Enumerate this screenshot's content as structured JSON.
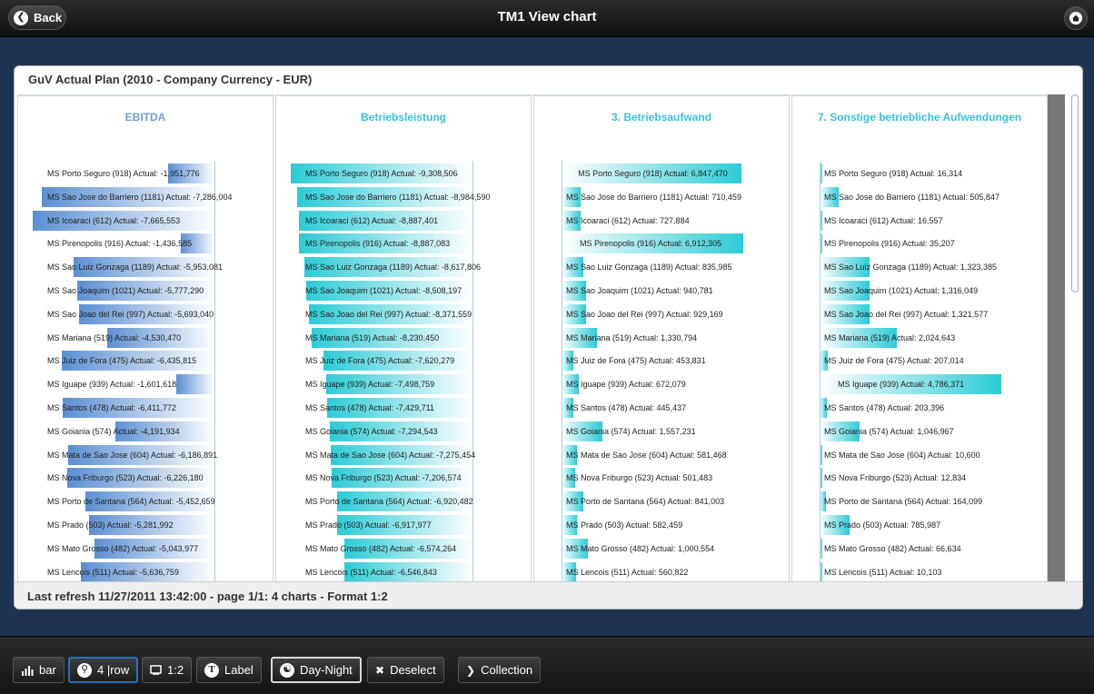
{
  "header": {
    "title": "TM1 View chart",
    "back_label": "Back"
  },
  "panel": {
    "title": "GuV Actual Plan (2010 - Company Currency - EUR)",
    "footer": "Last refresh 11/27/2011 13:42:00 - page 1/1: 4 charts - Format 1:2"
  },
  "chart_data": [
    {
      "type": "bar",
      "title": "EBITDA",
      "categories": [
        "MS Porto Seguro (918)",
        "MS Sao Jose do Barriero (1181)",
        "MS Icoaraci (612)",
        "MS Pirenopolis (916)",
        "MS Sao Luiz Gonzaga (1189)",
        "MS Sao Joaquim (1021)",
        "MS Sao Joao del Rei (997)",
        "MS Mariana (519)",
        "MS Juiz de Fora (475)",
        "MS Iguape (939)",
        "MS Santos (478)",
        "MS Goiania (574)",
        "MS Mata de Sao Jose (604)",
        "MS Nova Friburgo (523)",
        "MS Porto de Santana (564)",
        "MS Prado (503)",
        "MS Mato Grosso (482)",
        "MS Lencois (511)"
      ],
      "values": [
        -1951776,
        -7286004,
        -7665553,
        -1436585,
        -5953081,
        -5777290,
        -5693040,
        -4530470,
        -6435815,
        -1601618,
        -6411772,
        -4191934,
        -6186891,
        -6226180,
        -5452659,
        -5281992,
        -5043977,
        -5636759
      ],
      "labels": [
        "MS Porto Seguro (918) Actual: -1,951,776",
        "MS Sao Jose do Barriero (1181) Actual: -7,286,004",
        "MS Icoaraci (612) Actual: -7,665,553",
        "MS Pirenopolis (916) Actual: -1,436,585",
        "MS Sao Luiz Gonzaga (1189) Actual: -5,953,081",
        "MS Sao Joaquim (1021) Actual: -5,777,290",
        "MS Sao Joao del Rei (997) Actual: -5,693,040",
        "MS Mariana (519) Actual: -4,530,470",
        "MS Juiz de Fora (475) Actual: -6,435,815",
        "MS Iguape (939) Actual: -1,601,618",
        "MS Santos (478) Actual: -6,411,772",
        "MS Goiania (574) Actual: -4,191,934",
        "MS Mata de Sao Jose (604) Actual: -6,186,891",
        "MS Nova Friburgo (523) Actual: -6,226,180",
        "MS Porto de Santana (564) Actual: -5,452,659",
        "MS Prado (503) Actual: -5,281,992",
        "MS Mato Grosso (482) Actual: -5,043,977",
        "MS Lencois (511) Actual: -5,636,759"
      ],
      "color": "#5b8fd2"
    },
    {
      "type": "bar",
      "title": "Betriebsleistung",
      "categories": [
        "MS Porto Seguro (918)",
        "MS Sao Jose do Barriero (1181)",
        "MS Icoaraci (612)",
        "MS Pirenopolis (916)",
        "MS Sao Luiz Gonzaga (1189)",
        "MS Sao Joaquim (1021)",
        "MS Sao Joao del Rei (997)",
        "MS Mariana (519)",
        "MS Juiz de Fora (475)",
        "MS Iguape (939)",
        "MS Santos (478)",
        "MS Goiania (574)",
        "MS Mata de Sao Jose (604)",
        "MS Nova Friburgo (523)",
        "MS Porto de Santana (564)",
        "MS Prado (503)",
        "MS Mato Grosso (482)",
        "MS Lencois (511)"
      ],
      "values": [
        -9308506,
        -8984590,
        -8887401,
        -8887083,
        -8617806,
        -8508197,
        -8371559,
        -8230450,
        -7620279,
        -7498759,
        -7429711,
        -7294543,
        -7275454,
        -7206574,
        -6920482,
        -6917977,
        -6574264,
        -6546843
      ],
      "labels": [
        "MS Porto Seguro (918) Actual: -9,308,506",
        "MS Sao Jose do Barriero (1181) Actual: -8,984,590",
        "MS Icoaraci (612) Actual: -8,887,401",
        "MS Pirenopolis (916) Actual: -8,887,083",
        "MS Sao Luiz Gonzaga (1189) Actual: -8,617,806",
        "MS Sao Joaquim (1021) Actual: -8,508,197",
        "MS Sao Joao del Rei (997) Actual: -8,371,559",
        "MS Mariana (519) Actual: -8,230,450",
        "MS Juiz de Fora (475) Actual: -7,620,279",
        "MS Iguape (939) Actual: -7,498,759",
        "MS Santos (478) Actual: -7,429,711",
        "MS Goiania (574) Actual: -7,294,543",
        "MS Mata de Sao Jose (604) Actual: -7,275,454",
        "MS Nova Friburgo (523) Actual: -7,206,574",
        "MS Porto de Santana (564) Actual: -6,920,482",
        "MS Prado (503) Actual: -6,917,977",
        "MS Mato Grosso (482) Actual: -6,574,264",
        "MS Lencois (511) Actual: -6,546,843"
      ],
      "color": "#2ccbd6"
    },
    {
      "type": "bar",
      "title": "3. Betriebsaufwand",
      "categories": [
        "MS Porto Seguro (918)",
        "MS Sao Jose do Barriero (1181)",
        "MS Icoaraci (612)",
        "MS Pirenopolis (916)",
        "MS Sao Luiz Gonzaga (1189)",
        "MS Sao Joaquim (1021)",
        "MS Sao Joao del Rei (997)",
        "MS Mariana (519)",
        "MS Juiz de Fora (475)",
        "MS Iguape (939)",
        "MS Santos (478)",
        "MS Goiania (574)",
        "MS Mata de Sao Jose (604)",
        "MS Nova Friburgo (523)",
        "MS Porto de Santana (564)",
        "MS Prado (503)",
        "MS Mato Grosso (482)",
        "MS Lencois (511)"
      ],
      "values": [
        6847470,
        710459,
        727884,
        6912305,
        835985,
        940781,
        929169,
        1330794,
        453831,
        672079,
        445437,
        1557231,
        581468,
        501483,
        841003,
        582459,
        1000554,
        560822
      ],
      "labels": [
        "MS Porto Seguro (918) Actual: 6,847,470",
        "MS Sao Jose do Barriero (1181) Actual: 710,459",
        "MS Icoaraci (612) Actual: 727,884",
        "MS Pirenopolis (916) Actual: 6,912,305",
        "MS Sao Luiz Gonzaga (1189) Actual: 835,985",
        "MS Sao Joaquim (1021) Actual: 940,781",
        "MS Sao Joao del Rei (997) Actual: 929,169",
        "MS Mariana (519) Actual: 1,330,794",
        "MS Juiz de Fora (475) Actual: 453,831",
        "MS Iguape (939) Actual: 672,079",
        "MS Santos (478) Actual: 445,437",
        "MS Goiania (574) Actual: 1,557,231",
        "MS Mata de Sao Jose (604) Actual: 581,468",
        "MS Nova Friburgo (523) Actual: 501,483",
        "MS Porto de Santana (564) Actual: 841,003",
        "MS Prado (503) Actual: 582,459",
        "MS Mato Grosso (482) Actual: 1,000,554",
        "MS Lencois (511) Actual: 560,822"
      ],
      "color": "#2ccbd6"
    },
    {
      "type": "bar",
      "title": "7. Sonstige betriebliche Aufwendungen",
      "categories": [
        "MS Porto Seguro (918)",
        "MS Sao Jose do Barriero (1181)",
        "MS Icoaraci (612)",
        "MS Pirenopolis (916)",
        "MS Sao Luiz Gonzaga (1189)",
        "MS Sao Joaquim (1021)",
        "MS Sao Joao del Rei (997)",
        "MS Mariana (519)",
        "MS Juiz de Fora (475)",
        "MS Iguape (939)",
        "MS Santos (478)",
        "MS Goiania (574)",
        "MS Mata de Sao Jose (604)",
        "MS Nova Friburgo (523)",
        "MS Porto de Santana (564)",
        "MS Prado (503)",
        "MS Mato Grosso (482)",
        "MS Lencois (511)"
      ],
      "values": [
        16314,
        505847,
        16557,
        35207,
        1323385,
        1316049,
        1321577,
        2024643,
        207014,
        4786371,
        203396,
        1046967,
        10600,
        12834,
        164099,
        785987,
        66634,
        10103
      ],
      "labels": [
        "MS Porto Seguro (918) Actual: 16,314",
        "MS Sao Jose do Barriero (1181) Actual: 505,847",
        "MS Icoaraci (612) Actual: 16,557",
        "MS Pirenopolis (916) Actual: 35,207",
        "MS Sao Luiz Gonzaga (1189) Actual: 1,323,385",
        "MS Sao Joaquim (1021) Actual: 1,316,049",
        "MS Sao Joao del Rei (997) Actual: 1,321,577",
        "MS Mariana (519) Actual: 2,024,643",
        "MS Juiz de Fora (475) Actual: 207,014",
        "MS Iguape (939) Actual: 4,786,371",
        "MS Santos (478) Actual: 203,396",
        "MS Goiania (574) Actual: 1,046,967",
        "MS Mata de Sao Jose (604) Actual: 10,600",
        "MS Nova Friburgo (523) Actual: 12,834",
        "MS Porto de Santana (564) Actual: 164,099",
        "MS Prado (503) Actual: 785,987",
        "MS Mato Grosso (482) Actual: 66,634",
        "MS Lencois (511) Actual: 10,103"
      ],
      "color": "#2ccbd6"
    }
  ],
  "toolbar": {
    "bar_label": "bar",
    "four_row_label": "4 |row",
    "format_label": "1:2",
    "label_label": "Label",
    "day_night_label": "Day-Night",
    "deselect_label": "Deselect",
    "collection_label": "Collection"
  },
  "icons": {
    "back": "chevron-left-icon",
    "home": "home-icon",
    "bar": "bar-chart-icon",
    "rows": "search-icon",
    "format": "screen-icon",
    "label": "text-icon",
    "day_night": "yin-yang-icon",
    "deselect": "close-icon",
    "collection": "chevron-right-icon"
  }
}
